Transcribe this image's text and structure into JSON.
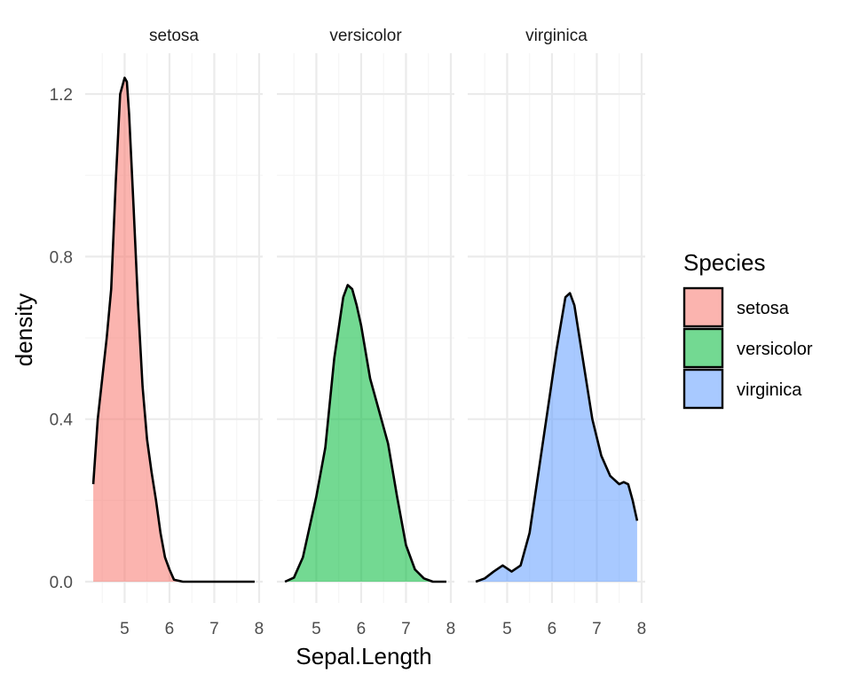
{
  "chart_data": {
    "type": "area",
    "chart_kind": "faceted density plot",
    "xlabel": "Sepal.Length",
    "ylabel": "density",
    "xlim": [
      4.3,
      7.9
    ],
    "ylim": [
      0,
      1.25
    ],
    "x_ticks": [
      5,
      6,
      7,
      8
    ],
    "y_ticks": [
      0.0,
      0.4,
      0.8,
      1.2
    ],
    "y_tick_labels": [
      "0.0",
      "0.4",
      "0.8",
      "1.2"
    ],
    "grid": true,
    "legend": {
      "title": "Species",
      "position": "right"
    },
    "panels": [
      {
        "strip": "setosa",
        "name": "setosa",
        "color": "#F8766D",
        "x": [
          4.3,
          4.4,
          4.5,
          4.6,
          4.7,
          4.8,
          4.9,
          5.0,
          5.05,
          5.1,
          5.2,
          5.3,
          5.4,
          5.5,
          5.6,
          5.7,
          5.8,
          5.9,
          6.0,
          6.1,
          6.3,
          6.5,
          7.0,
          7.5,
          7.9
        ],
        "y": [
          0.24,
          0.4,
          0.5,
          0.6,
          0.72,
          0.98,
          1.2,
          1.24,
          1.23,
          1.15,
          0.92,
          0.68,
          0.48,
          0.35,
          0.27,
          0.2,
          0.12,
          0.06,
          0.03,
          0.005,
          0.0,
          0.0,
          0.0,
          0.0,
          0.0
        ]
      },
      {
        "strip": "versicolor",
        "name": "versicolor",
        "color": "#00BA38",
        "x": [
          4.3,
          4.5,
          4.7,
          4.9,
          5.0,
          5.2,
          5.4,
          5.6,
          5.7,
          5.8,
          5.9,
          6.0,
          6.2,
          6.4,
          6.6,
          6.8,
          7.0,
          7.2,
          7.4,
          7.6,
          7.9
        ],
        "y": [
          0.0,
          0.01,
          0.06,
          0.16,
          0.21,
          0.33,
          0.55,
          0.7,
          0.73,
          0.72,
          0.68,
          0.63,
          0.5,
          0.42,
          0.34,
          0.21,
          0.09,
          0.03,
          0.008,
          0.0,
          0.0
        ]
      },
      {
        "strip": "virginica",
        "name": "virginica",
        "color": "#619CFF",
        "x": [
          4.3,
          4.5,
          4.7,
          4.9,
          5.1,
          5.3,
          5.5,
          5.7,
          5.9,
          6.1,
          6.3,
          6.4,
          6.5,
          6.7,
          6.9,
          7.1,
          7.3,
          7.5,
          7.6,
          7.7,
          7.8,
          7.9
        ],
        "y": [
          0.0,
          0.008,
          0.025,
          0.04,
          0.025,
          0.04,
          0.12,
          0.27,
          0.42,
          0.57,
          0.7,
          0.71,
          0.68,
          0.54,
          0.4,
          0.31,
          0.26,
          0.24,
          0.245,
          0.24,
          0.2,
          0.15
        ]
      }
    ]
  },
  "colors": {
    "grid_major": "#ebebeb",
    "grid_minor": "#f5f5f5",
    "outline": "#000000"
  }
}
